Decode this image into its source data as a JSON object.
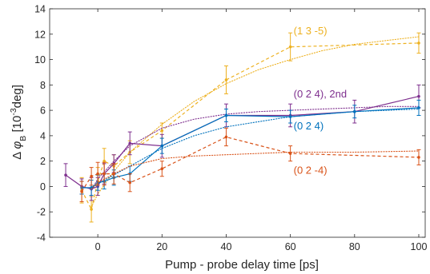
{
  "chart_data": {
    "type": "line",
    "xlabel": "Pump - probe delay time [ps]",
    "ylabel": {
      "prefix": "Δ ",
      "symbol": "φ",
      "subscript": "B",
      "unit_open": " [10",
      "superscript": "-3",
      "unit_close": "deg]"
    },
    "xlim": [
      -15,
      102
    ],
    "ylim": [
      -4,
      14
    ],
    "xticks": [
      0,
      20,
      40,
      60,
      80,
      100
    ],
    "yticks": [
      -4,
      -2,
      0,
      2,
      4,
      6,
      8,
      10,
      12,
      14
    ],
    "grid": false,
    "series": [
      {
        "name": "(1 3 -5)",
        "color": "#EDB120",
        "x": [
          -5,
          -2,
          0,
          2,
          5,
          10,
          20,
          40,
          60,
          100
        ],
        "y": [
          -0.3,
          -1.8,
          0.4,
          2.0,
          1.6,
          2.7,
          4.4,
          8.4,
          11.0,
          11.3
        ],
        "err": [
          1.0,
          1.0,
          1.1,
          1.0,
          0.9,
          0.9,
          0.6,
          1.1,
          1.1,
          0.8
        ],
        "fit_x": [
          -2,
          0,
          5,
          10,
          20,
          30,
          40,
          50,
          60,
          70,
          80,
          90,
          100
        ],
        "fit_y": [
          -1.6,
          -0.6,
          1.2,
          2.7,
          4.9,
          6.7,
          8.1,
          9.2,
          10.0,
          10.7,
          11.2,
          11.5,
          11.8
        ]
      },
      {
        "name": "(0 2 4), 2nd",
        "color": "#7E2F8E",
        "x": [
          -10,
          -5,
          -2,
          0,
          2,
          5,
          10,
          20,
          40,
          60,
          80,
          100
        ],
        "y": [
          0.9,
          0.0,
          -0.2,
          0.0,
          1.0,
          1.8,
          3.4,
          3.2,
          5.6,
          5.6,
          5.9,
          7.1
        ],
        "err": [
          0.9,
          0.6,
          0.9,
          0.7,
          0.8,
          0.7,
          0.9,
          0.9,
          0.9,
          0.9,
          0.9,
          0.9
        ],
        "fit_x": [
          -2,
          0,
          5,
          10,
          20,
          30,
          40,
          50,
          60,
          70,
          80,
          90,
          100
        ],
        "fit_y": [
          -0.3,
          0.6,
          2.0,
          3.2,
          4.6,
          5.3,
          5.7,
          5.9,
          6.0,
          6.1,
          6.2,
          6.3,
          6.3
        ]
      },
      {
        "name": "(0 2 4)",
        "color": "#0072BD",
        "x": [
          -5,
          -2,
          0,
          2,
          5,
          10,
          20,
          40,
          60,
          80,
          100
        ],
        "y": [
          -0.1,
          -0.1,
          0.3,
          0.4,
          0.7,
          1.0,
          3.2,
          5.6,
          5.5,
          5.9,
          6.2
        ],
        "err": [
          0.5,
          0.6,
          0.6,
          0.6,
          0.6,
          0.6,
          0.6,
          0.5,
          0.5,
          0.5,
          0.6
        ],
        "fit_x": [
          -2,
          0,
          5,
          10,
          20,
          30,
          40,
          50,
          60,
          70,
          80,
          90,
          100
        ],
        "fit_y": [
          -0.2,
          0.2,
          0.9,
          1.6,
          3.0,
          4.0,
          4.7,
          5.1,
          5.5,
          5.7,
          5.9,
          6.0,
          6.1
        ]
      },
      {
        "name": "(0 2 -4)",
        "color": "#D95319",
        "x": [
          -5,
          -2,
          0,
          2,
          5,
          10,
          20,
          40,
          60,
          100
        ],
        "y": [
          -0.4,
          0.8,
          1.0,
          1.0,
          1.0,
          0.3,
          1.4,
          3.9,
          2.6,
          2.3
        ],
        "err": [
          0.8,
          0.7,
          0.9,
          0.9,
          0.8,
          0.7,
          0.6,
          0.7,
          0.6,
          0.6
        ],
        "fit_x": [
          -2,
          0,
          5,
          10,
          20,
          30,
          40,
          50,
          60,
          70,
          80,
          90,
          100
        ],
        "fit_y": [
          -0.2,
          0.3,
          1.0,
          1.6,
          2.2,
          2.4,
          2.5,
          2.6,
          2.7,
          2.7,
          2.7,
          2.75,
          2.8
        ]
      }
    ],
    "annotations": [
      {
        "text": "(1 3 -5)",
        "x": 61,
        "y": 12.0,
        "color": "#EDB120"
      },
      {
        "text": "(0 2 4), 2nd",
        "x": 61,
        "y": 7.0,
        "color": "#7E2F8E"
      },
      {
        "text": "(0 2 4)",
        "x": 61,
        "y": 4.5,
        "color": "#0072BD"
      },
      {
        "text": "(0 2 -4)",
        "x": 61,
        "y": 1.0,
        "color": "#D95319"
      }
    ]
  }
}
